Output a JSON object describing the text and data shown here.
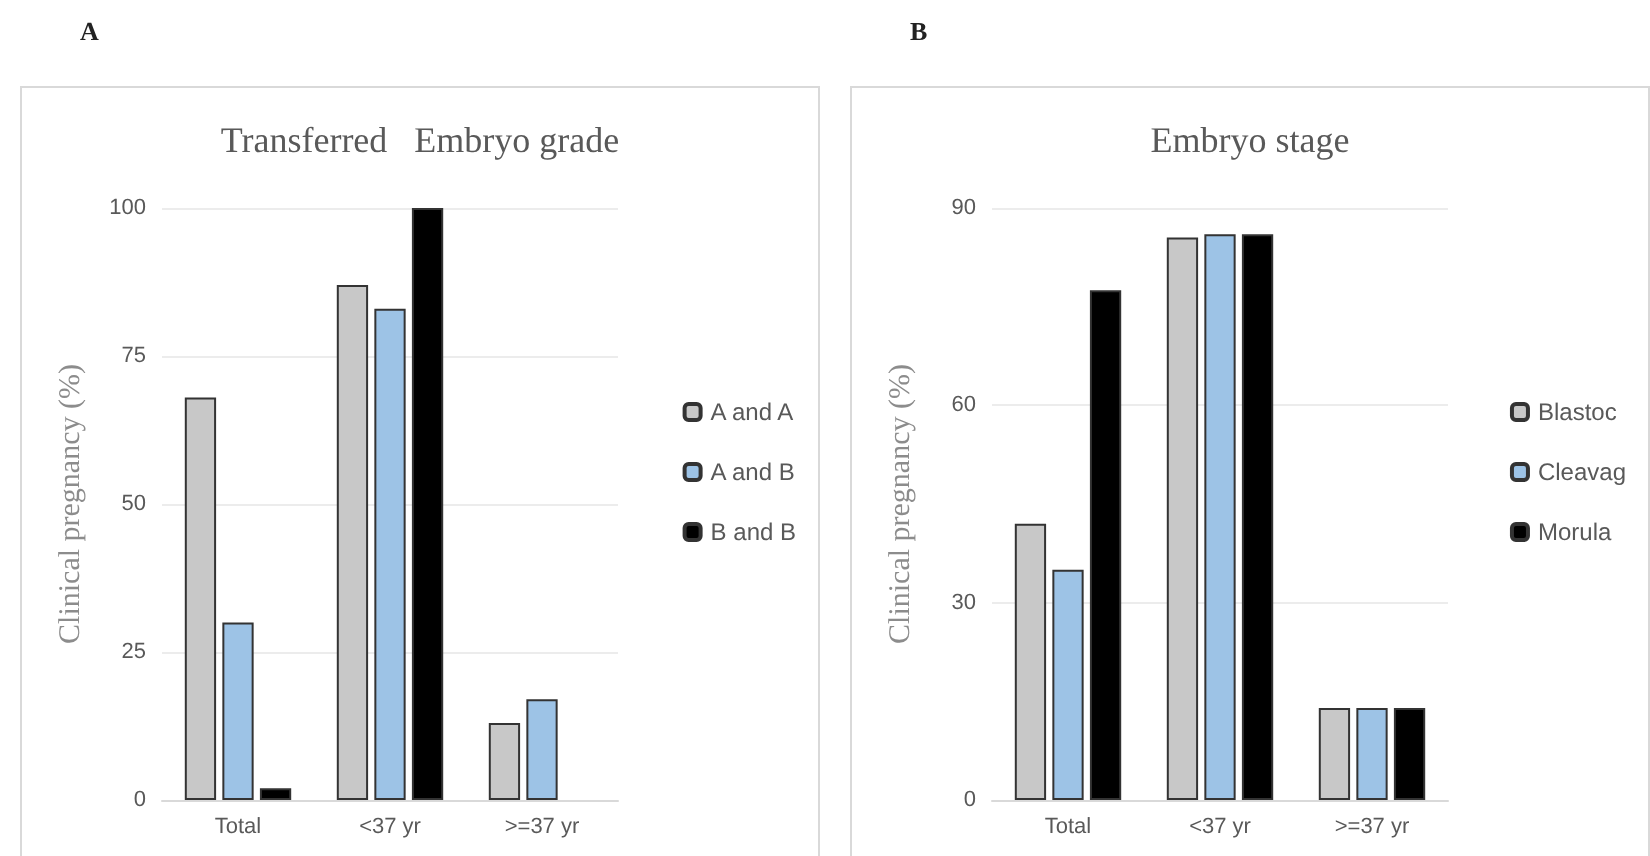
{
  "chart_data": [
    {
      "type": "bar",
      "title": "Transferred   Embryo grade",
      "ylabel": "Clinical pregnancy (%)",
      "annotations": [
        "A"
      ],
      "categories": [
        "Total",
        "<37 yr",
        ">=37 yr"
      ],
      "series": [
        {
          "name": "A and A",
          "color": "#c8c8c8",
          "values": [
            68,
            87,
            13
          ]
        },
        {
          "name": "A and B",
          "color": "#9dc3e6",
          "values": [
            30,
            83,
            17
          ]
        },
        {
          "name": "B and B",
          "color": "#000000",
          "values": [
            2,
            100,
            null
          ]
        }
      ],
      "ylim": [
        0,
        100
      ],
      "yticks": [
        0,
        25,
        50,
        75,
        100
      ],
      "grid": "y",
      "legend": "right"
    },
    {
      "type": "bar",
      "title": "Embryo stage",
      "ylabel": "Clinical pregnancy (%)",
      "annotations": [
        "B"
      ],
      "categories": [
        "Total",
        "<37 yr",
        ">=37 yr"
      ],
      "series": [
        {
          "name": "Blastoc",
          "color": "#c8c8c8",
          "values": [
            42,
            85.5,
            14
          ]
        },
        {
          "name": "Cleavag",
          "color": "#9dc3e6",
          "values": [
            35,
            86,
            14
          ]
        },
        {
          "name": "Morula",
          "color": "#000000",
          "values": [
            77.5,
            86,
            14
          ]
        }
      ],
      "ylim": [
        0,
        90
      ],
      "yticks": [
        0,
        30,
        60,
        90
      ],
      "grid": "y",
      "legend": "right"
    }
  ]
}
